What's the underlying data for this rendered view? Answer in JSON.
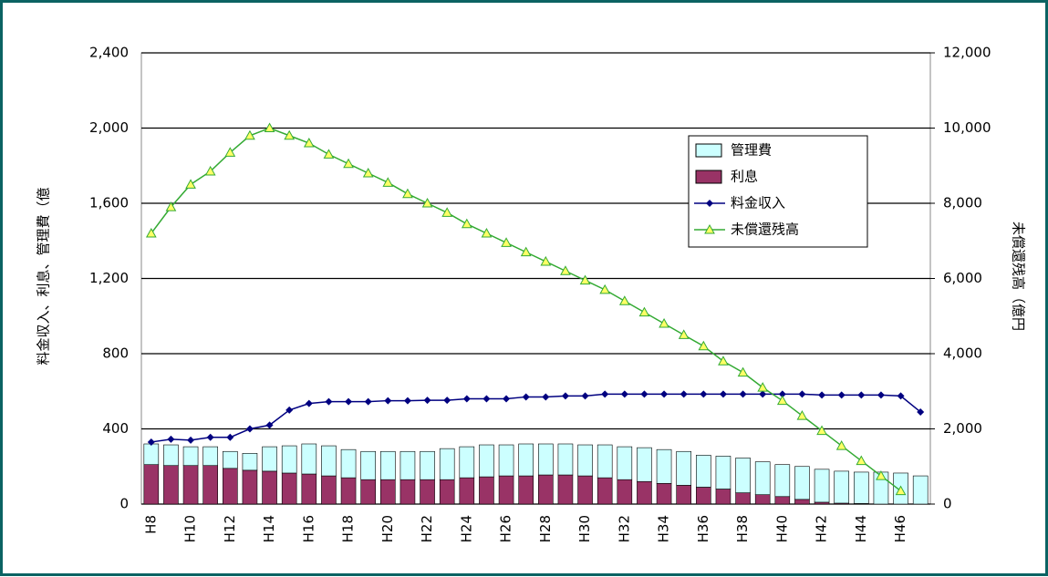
{
  "chart_data": {
    "type": "bar",
    "stacked": true,
    "categories": [
      "H8",
      null,
      "H10",
      null,
      "H12",
      null,
      "H14",
      null,
      "H16",
      null,
      "H18",
      null,
      "H20",
      null,
      "H22",
      null,
      "H24",
      null,
      "H26",
      null,
      "H28",
      null,
      "H30",
      null,
      "H32",
      null,
      "H34",
      null,
      "H36",
      null,
      "H38",
      null,
      "H40",
      null,
      "H42",
      null,
      "H44",
      null,
      "H46",
      null
    ],
    "y_label": "料金収入、利息、管理費（億",
    "y2_label": "未償還残高（億円",
    "ylim": [
      0,
      2400
    ],
    "yticks": [
      0,
      400,
      800,
      {
        "value": 1200,
        "label": "1,200"
      },
      {
        "value": 1600,
        "label": "1,600"
      },
      {
        "value": 2000,
        "label": "2,000"
      },
      {
        "value": 2400,
        "label": "2,400"
      }
    ],
    "y2lim": [
      0,
      12000
    ],
    "y2ticks": [
      0,
      {
        "value": 2000,
        "label": "2,000"
      },
      {
        "value": 4000,
        "label": "4,000"
      },
      {
        "value": 6000,
        "label": "6,000"
      },
      {
        "value": 8000,
        "label": "8,000"
      },
      {
        "value": 10000,
        "label": "10,000"
      },
      {
        "value": 12000,
        "label": "12,000"
      }
    ],
    "grid": true,
    "legend": "upper right",
    "series": [
      {
        "name": "管理費",
        "type": "bar",
        "color": "#ccffff",
        "values": [
          110,
          110,
          100,
          100,
          90,
          90,
          130,
          145,
          160,
          160,
          150,
          150,
          150,
          150,
          150,
          165,
          165,
          170,
          165,
          170,
          165,
          165,
          165,
          175,
          175,
          180,
          180,
          180,
          170,
          175,
          185,
          175,
          170,
          175,
          175,
          170,
          167,
          170,
          165,
          150
        ]
      },
      {
        "name": "利息",
        "type": "bar",
        "color": "#993366",
        "values": [
          210,
          205,
          205,
          205,
          190,
          180,
          175,
          165,
          160,
          150,
          140,
          130,
          130,
          130,
          130,
          130,
          140,
          145,
          150,
          150,
          155,
          155,
          150,
          140,
          130,
          120,
          110,
          100,
          90,
          80,
          60,
          50,
          40,
          25,
          10,
          5,
          3,
          0,
          0,
          0
        ]
      },
      {
        "name": "料金収入",
        "type": "line",
        "color": "#000080",
        "values": [
          330,
          345,
          340,
          355,
          355,
          400,
          420,
          500,
          535,
          545,
          545,
          545,
          550,
          550,
          552,
          552,
          560,
          560,
          560,
          570,
          570,
          575,
          575,
          585,
          585,
          585,
          585,
          585,
          585,
          585,
          585,
          585,
          585,
          585,
          580,
          580,
          580,
          580,
          575,
          490
        ]
      },
      {
        "name": "未償還残高",
        "type": "line",
        "axis": "y2",
        "color": "#33aa33",
        "values": [
          7200,
          7900,
          8500,
          8850,
          9350,
          9800,
          10000,
          9800,
          9600,
          9300,
          9050,
          8800,
          8550,
          8250,
          8000,
          7750,
          7450,
          7200,
          6950,
          6700,
          6450,
          6200,
          5950,
          5700,
          5400,
          5100,
          4800,
          4500,
          4200,
          3800,
          3500,
          3100,
          2750,
          2350,
          1950,
          1550,
          1150,
          750,
          350,
          null
        ]
      }
    ]
  }
}
